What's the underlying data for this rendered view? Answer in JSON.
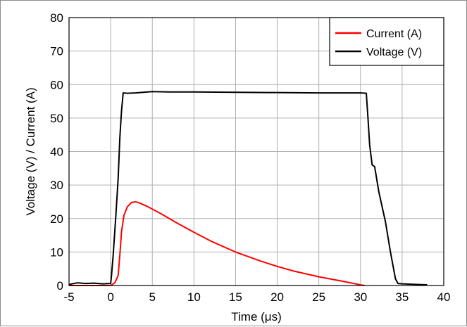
{
  "chart_data": {
    "type": "line",
    "title": "",
    "xlabel": "Time (μs)",
    "ylabel": "Voltage (V) / Current (A)",
    "xlim": [
      -5,
      40
    ],
    "ylim": [
      0,
      80
    ],
    "x_ticks": [
      "-5",
      "0",
      "5",
      "10",
      "15",
      "20",
      "25",
      "30",
      "35",
      "40"
    ],
    "y_ticks": [
      "0",
      "10",
      "20",
      "30",
      "40",
      "50",
      "60",
      "70",
      "80"
    ],
    "grid": true,
    "legend_position": "top-right",
    "series": [
      {
        "name": "Current (A)",
        "color": "#ff0000",
        "points": [
          [
            -5,
            0
          ],
          [
            0,
            0
          ],
          [
            0.5,
            0.8
          ],
          [
            0.9,
            3
          ],
          [
            1.1,
            9
          ],
          [
            1.3,
            16
          ],
          [
            1.6,
            21
          ],
          [
            2.0,
            23.5
          ],
          [
            2.5,
            24.8
          ],
          [
            3.0,
            25.0
          ],
          [
            3.5,
            24.6
          ],
          [
            4.5,
            23.5
          ],
          [
            6,
            21.5
          ],
          [
            8,
            18.6
          ],
          [
            10,
            15.9
          ],
          [
            12,
            13.3
          ],
          [
            15,
            10.0
          ],
          [
            18,
            7.3
          ],
          [
            20,
            5.7
          ],
          [
            22,
            4.3
          ],
          [
            25,
            2.6
          ],
          [
            28,
            1.2
          ],
          [
            30,
            0.2
          ],
          [
            30.5,
            0
          ]
        ]
      },
      {
        "name": "Voltage (V)",
        "color": "#000000",
        "points": [
          [
            -5,
            0.3
          ],
          [
            -4,
            0.8
          ],
          [
            -3,
            0.6
          ],
          [
            -2,
            0.7
          ],
          [
            -1,
            0.5
          ],
          [
            0,
            0.6
          ],
          [
            0.1,
            3
          ],
          [
            0.3,
            9
          ],
          [
            0.6,
            20
          ],
          [
            0.9,
            32
          ],
          [
            1.1,
            44
          ],
          [
            1.3,
            52
          ],
          [
            1.5,
            57.5
          ],
          [
            2,
            57.4
          ],
          [
            3,
            57.5
          ],
          [
            5,
            57.9
          ],
          [
            7,
            57.8
          ],
          [
            10,
            57.8
          ],
          [
            15,
            57.7
          ],
          [
            20,
            57.6
          ],
          [
            25,
            57.5
          ],
          [
            30,
            57.5
          ],
          [
            30.7,
            57.4
          ],
          [
            30.9,
            50
          ],
          [
            31.1,
            42
          ],
          [
            31.4,
            36
          ],
          [
            31.7,
            35.5
          ],
          [
            32.2,
            28
          ],
          [
            33,
            19
          ],
          [
            33.6,
            10
          ],
          [
            34.2,
            2
          ],
          [
            34.5,
            0.6
          ],
          [
            35,
            0.5
          ],
          [
            37,
            0.3
          ],
          [
            38,
            0.2
          ]
        ]
      }
    ]
  }
}
